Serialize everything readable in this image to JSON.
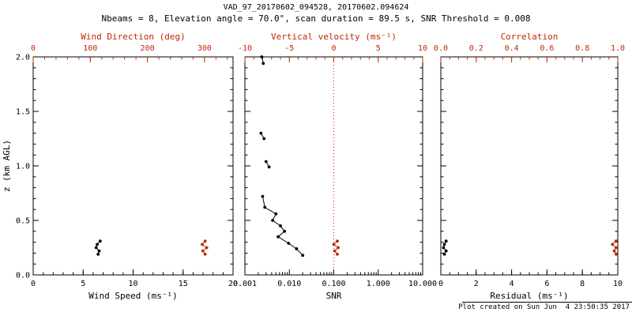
{
  "chart_data": {
    "type": "line",
    "orientation": "vertical-profile",
    "title": "VAD_97_20170602_094528, 20170602.094624",
    "subtitle": "Nbeams = 8, Elevation angle = 70.0°, scan duration = 89.5 s, SNR Threshold = 0.008",
    "footer": "Plot created on Sun Jun  4 23:50:35 2017",
    "colors": {
      "black": "#000000",
      "red": "#c22704",
      "background": "#ffffff"
    },
    "grid": "off",
    "y_axis": {
      "label": "z (km AGL)",
      "lim": [
        0,
        2
      ],
      "ticks": [
        0,
        0.5,
        1,
        1.5,
        2
      ],
      "tick_labels": [
        "0.0",
        "0.5",
        "1.0",
        "1.5",
        "2.0"
      ],
      "minor_step": 0.1
    },
    "panels": [
      {
        "name": "wind",
        "bottom_axis": {
          "label": "Wind Speed (ms⁻¹)",
          "lim": [
            0,
            20
          ],
          "ticks": [
            0,
            5,
            10,
            15,
            20
          ],
          "tick_labels": [
            "0",
            "5",
            "10",
            "15",
            "20"
          ],
          "minor_step": 1,
          "color": "#000000"
        },
        "top_axis": {
          "label": "Wind Direction (deg)",
          "lim": [
            0,
            350
          ],
          "ticks": [
            0,
            100,
            200,
            300
          ],
          "tick_labels": [
            "0",
            "100",
            "200",
            "300"
          ],
          "minor_step": 20,
          "color": "#c22704"
        },
        "series": [
          {
            "name": "wind-speed",
            "axis": "bottom",
            "color": "#000000",
            "points": [
              [
                6.7,
                0.31
              ],
              [
                6.4,
                0.28
              ],
              [
                6.3,
                0.25
              ],
              [
                6.6,
                0.22
              ],
              [
                6.5,
                0.19
              ]
            ]
          },
          {
            "name": "wind-direction",
            "axis": "top",
            "color": "#c22704",
            "points": [
              [
                301,
                0.31
              ],
              [
                296,
                0.28
              ],
              [
                304,
                0.25
              ],
              [
                297,
                0.22
              ],
              [
                301,
                0.19
              ]
            ]
          }
        ]
      },
      {
        "name": "snr",
        "bottom_axis": {
          "label": "SNR",
          "lim": [
            0.001,
            10
          ],
          "scale": "log",
          "ticks": [
            0.001,
            0.01,
            0.1,
            1,
            10
          ],
          "tick_labels": [
            "0.001",
            "0.010",
            "0.100",
            "1.000",
            "10.000"
          ],
          "color": "#000000"
        },
        "top_axis": {
          "label": "Vertical velocity (ms⁻¹)",
          "lim": [
            -10,
            10
          ],
          "ticks": [
            -10,
            -5,
            0,
            5,
            10
          ],
          "tick_labels": [
            "-10",
            "-5",
            "0",
            "5",
            "10"
          ],
          "minor_step": 1,
          "color": "#c22704"
        },
        "refline": {
          "axis": "top",
          "value": 0,
          "color": "#c22704",
          "style": "dotted"
        },
        "series": [
          {
            "name": "snr-profile",
            "axis": "bottom",
            "color": "#000000",
            "points": [
              [
                0.0024,
                2.0
              ],
              [
                0.0026,
                1.94
              ],
              null,
              [
                0.0023,
                1.3
              ],
              [
                0.0027,
                1.25
              ],
              null,
              [
                0.003,
                1.04
              ],
              [
                0.0035,
                0.99
              ],
              null,
              [
                0.0025,
                0.72
              ],
              [
                0.0028,
                0.62
              ],
              [
                0.005,
                0.56
              ],
              [
                0.0042,
                0.5
              ],
              [
                0.0063,
                0.45
              ],
              [
                0.0078,
                0.4
              ],
              [
                0.0056,
                0.35
              ],
              [
                0.0096,
                0.29
              ],
              [
                0.0145,
                0.24
              ],
              [
                0.02,
                0.18
              ]
            ]
          },
          {
            "name": "vertical-velocity",
            "axis": "top",
            "color": "#c22704",
            "points": [
              [
                0.4,
                0.31
              ],
              [
                0.0,
                0.28
              ],
              [
                0.5,
                0.25
              ],
              [
                0.1,
                0.22
              ],
              [
                0.4,
                0.19
              ]
            ]
          }
        ]
      },
      {
        "name": "residual",
        "bottom_axis": {
          "label": "Residual (ms⁻¹)",
          "lim": [
            0,
            10
          ],
          "ticks": [
            0,
            2,
            4,
            6,
            8,
            10
          ],
          "tick_labels": [
            "0",
            "2",
            "4",
            "6",
            "8",
            "10"
          ],
          "minor_step": 0.5,
          "color": "#000000"
        },
        "top_axis": {
          "label": "Correlation",
          "lim": [
            0,
            1
          ],
          "ticks": [
            0,
            0.2,
            0.4,
            0.6,
            0.8,
            1
          ],
          "tick_labels": [
            "0.0",
            "0.2",
            "0.4",
            "0.6",
            "0.8",
            "1.0"
          ],
          "minor_step": 0.05,
          "color": "#c22704"
        },
        "series": [
          {
            "name": "residual",
            "axis": "bottom",
            "color": "#000000",
            "points": [
              [
                0.3,
                0.31
              ],
              [
                0.2,
                0.28
              ],
              [
                0.15,
                0.25
              ],
              [
                0.3,
                0.22
              ],
              [
                0.2,
                0.19
              ]
            ]
          },
          {
            "name": "correlation",
            "axis": "top",
            "color": "#c22704",
            "points": [
              [
                0.99,
                0.31
              ],
              [
                0.97,
                0.28
              ],
              [
                0.99,
                0.25
              ],
              [
                0.98,
                0.22
              ],
              [
                0.99,
                0.19
              ]
            ]
          }
        ]
      }
    ]
  }
}
